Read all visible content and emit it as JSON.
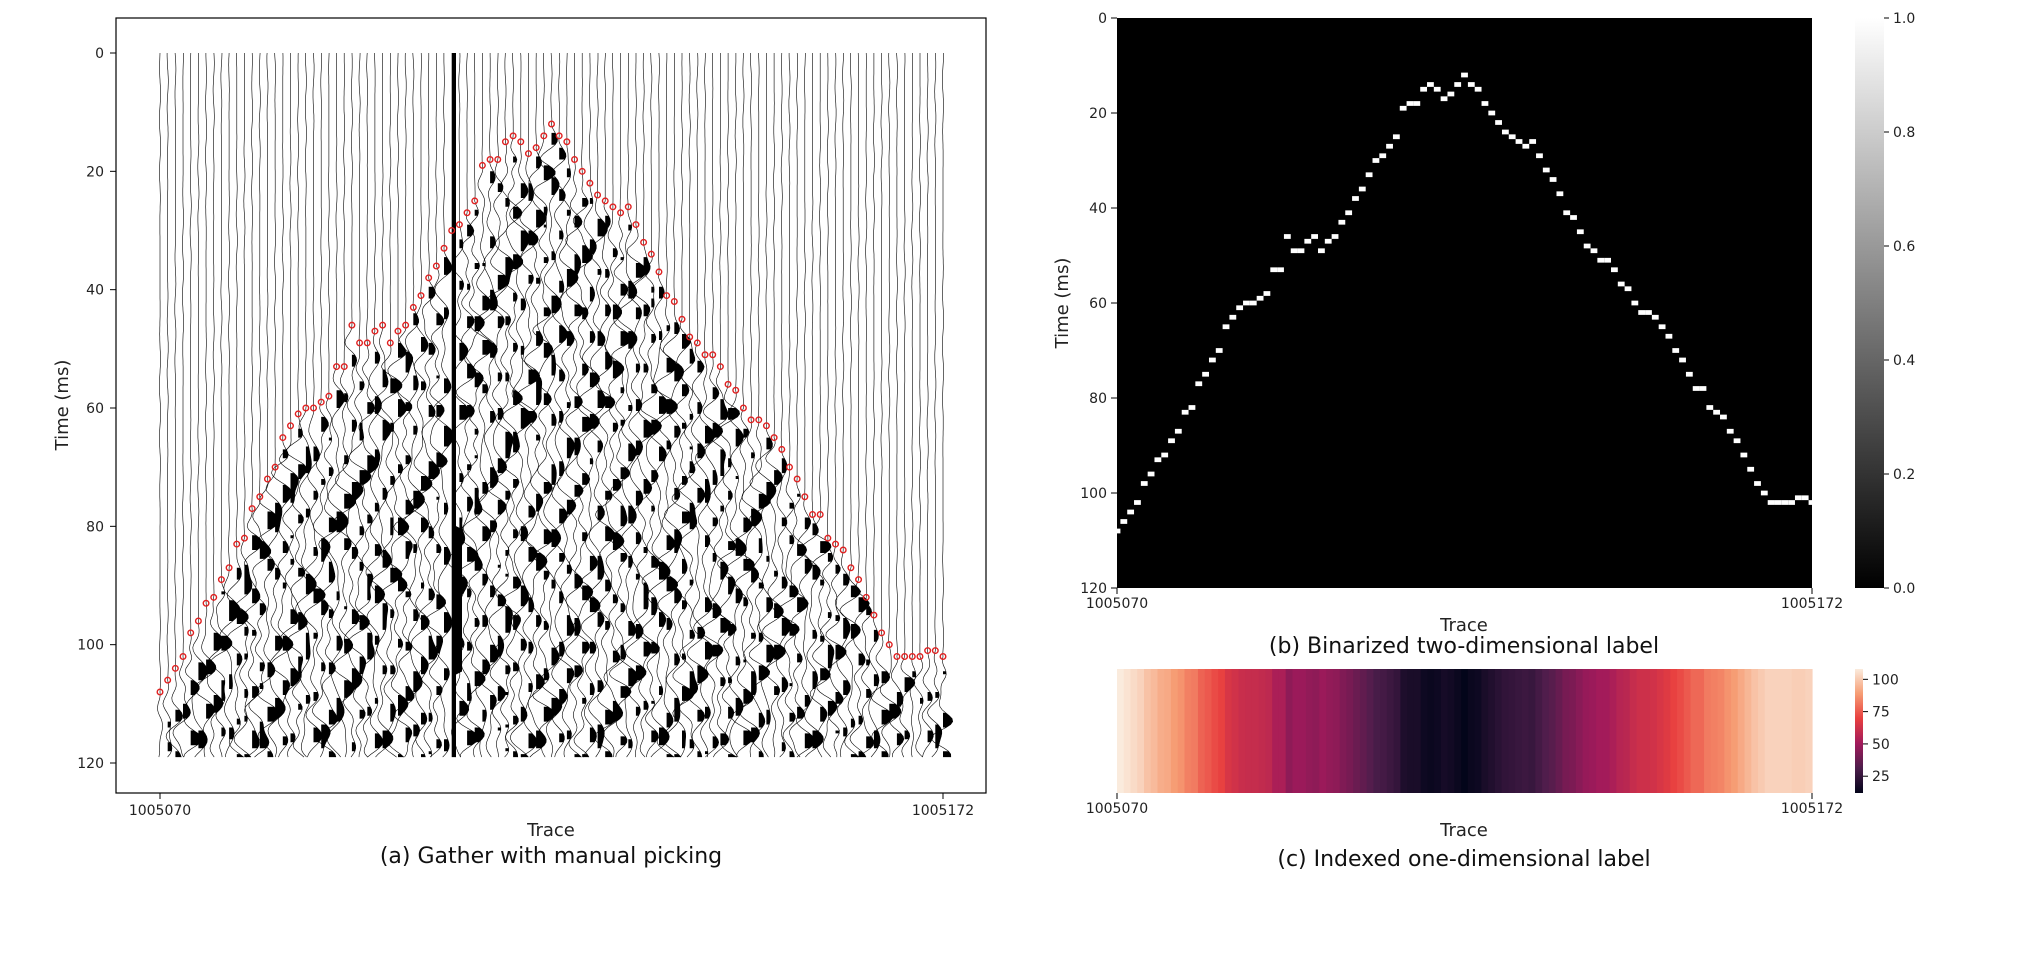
{
  "chart_data": [
    {
      "type": "seismic-wiggle",
      "caption": "(a) Gather with manual picking",
      "xlabel": "Trace",
      "ylabel": "Time (ms)",
      "x_ticks": [
        "1005070",
        "1005172"
      ],
      "xlim": [
        1005070,
        1005172
      ],
      "y_ticks": [
        0,
        20,
        40,
        60,
        80,
        100,
        120
      ],
      "ylim": [
        120,
        0
      ],
      "trace_count": 103,
      "pick_color": "#e02020",
      "fill_color": "#000000",
      "first_break_picks": {
        "x": [
          1005070,
          1005071,
          1005072,
          1005073,
          1005074,
          1005075,
          1005076,
          1005077,
          1005078,
          1005079,
          1005080,
          1005081,
          1005082,
          1005083,
          1005084,
          1005085,
          1005086,
          1005087,
          1005088,
          1005089,
          1005090,
          1005091,
          1005092,
          1005093,
          1005094,
          1005095,
          1005096,
          1005097,
          1005098,
          1005099,
          1005100,
          1005101,
          1005102,
          1005103,
          1005104,
          1005105,
          1005106,
          1005107,
          1005108,
          1005109,
          1005110,
          1005111,
          1005112,
          1005113,
          1005114,
          1005115,
          1005116,
          1005117,
          1005118,
          1005119,
          1005120,
          1005121,
          1005122,
          1005123,
          1005124,
          1005125,
          1005126,
          1005127,
          1005128,
          1005129,
          1005130,
          1005131,
          1005132,
          1005133,
          1005134,
          1005135,
          1005136,
          1005137,
          1005138,
          1005139,
          1005140,
          1005141,
          1005142,
          1005143,
          1005144,
          1005145,
          1005146,
          1005147,
          1005148,
          1005149,
          1005150,
          1005151,
          1005152,
          1005153,
          1005154,
          1005155,
          1005156,
          1005157,
          1005158,
          1005159,
          1005160,
          1005161,
          1005162,
          1005163,
          1005164,
          1005165,
          1005166,
          1005167,
          1005168,
          1005169,
          1005170,
          1005171,
          1005172
        ],
        "y": [
          108,
          106,
          104,
          102,
          98,
          96,
          93,
          92,
          89,
          87,
          83,
          82,
          77,
          75,
          72,
          70,
          65,
          63,
          61,
          60,
          60,
          59,
          58,
          53,
          53,
          46,
          49,
          49,
          47,
          46,
          49,
          47,
          46,
          43,
          41,
          38,
          36,
          33,
          30,
          29,
          27,
          25,
          19,
          18,
          18,
          15,
          14,
          15,
          17,
          16,
          14,
          12,
          14,
          15,
          18,
          20,
          22,
          24,
          25,
          26,
          27,
          26,
          29,
          32,
          34,
          37,
          41,
          42,
          45,
          48,
          49,
          51,
          51,
          53,
          56,
          57,
          60,
          62,
          62,
          63,
          65,
          67,
          70,
          72,
          75,
          78,
          78,
          82,
          83,
          84,
          87,
          89,
          92,
          95,
          98,
          100,
          102,
          102,
          102,
          102,
          101,
          101,
          102
        ]
      }
    },
    {
      "type": "heatmap",
      "caption": "(b) Binarized two-dimensional label",
      "xlabel": "Trace",
      "ylabel": "Time (ms)",
      "x_ticks": [
        "1005070",
        "1005172"
      ],
      "xlim": [
        1005070,
        1005172
      ],
      "y_ticks": [
        0,
        20,
        40,
        60,
        80,
        100,
        120
      ],
      "ylim": [
        120,
        0
      ],
      "colormap": "gray",
      "background_color": "#000000",
      "label_color": "#ffffff",
      "colorbar": {
        "ticks": [
          "0.0",
          "0.2",
          "0.4",
          "0.6",
          "0.8",
          "1.0"
        ],
        "range": [
          0,
          1
        ]
      }
    },
    {
      "type": "heatmap",
      "caption": "(c) Indexed one-dimensional label",
      "xlabel": "Trace",
      "x_ticks": [
        "1005070",
        "1005172"
      ],
      "xlim": [
        1005070,
        1005172
      ],
      "colormap": "rocket",
      "colormap_stops": [
        "#03051a",
        "#4c1d4b",
        "#a11a5b",
        "#e83f3f",
        "#f69c73",
        "#faebdd"
      ],
      "colorbar": {
        "ticks": [
          "25",
          "50",
          "75",
          "100"
        ],
        "range": [
          12,
          108
        ]
      }
    }
  ]
}
